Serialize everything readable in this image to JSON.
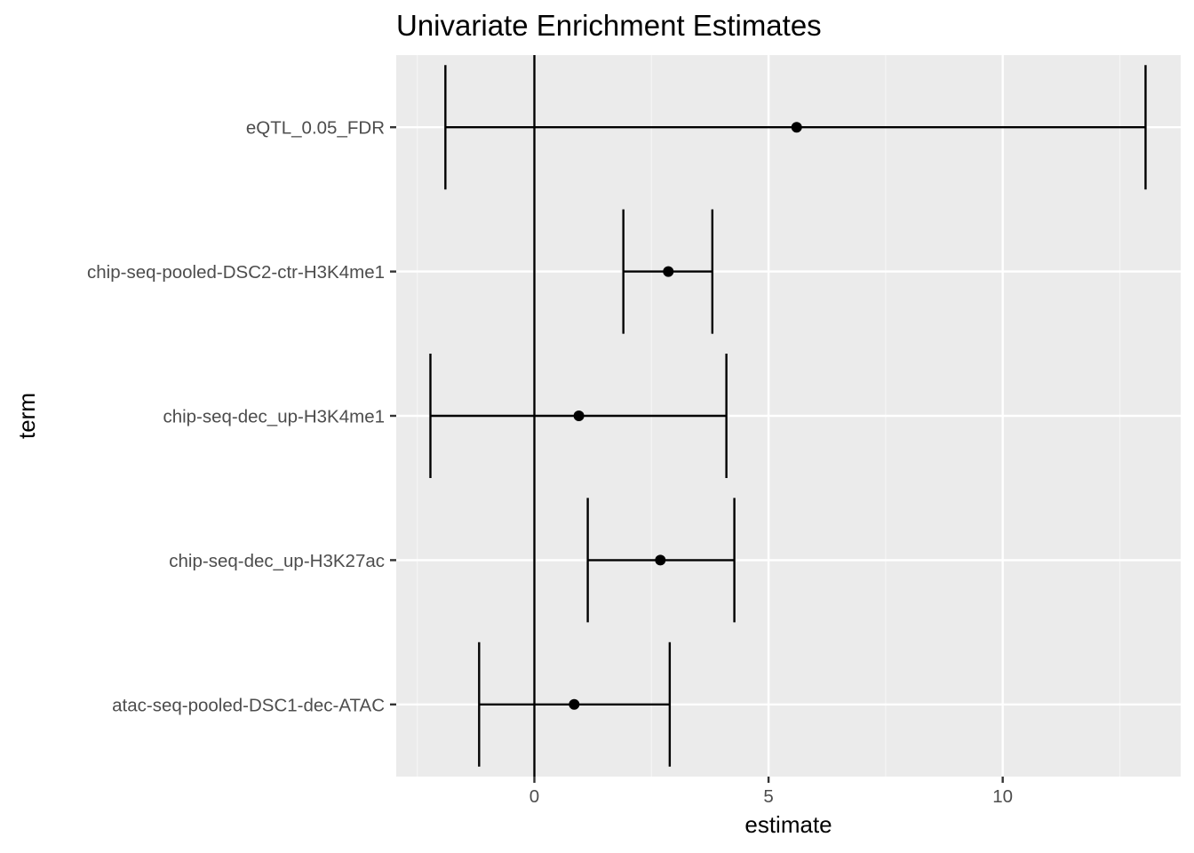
{
  "chart_data": {
    "type": "errorbar",
    "title": "Univariate Enrichment Estimates",
    "xlabel": "estimate",
    "ylabel": "term",
    "xlim": [
      -2.95,
      13.8
    ],
    "xticks": [
      0,
      5,
      10
    ],
    "xtick_labels": [
      "0",
      "5",
      "10"
    ],
    "reference_line_x": 0,
    "grid": true,
    "categories": [
      "atac-seq-pooled-DSC1-dec-ATAC",
      "chip-seq-dec_up-H3K27ac",
      "chip-seq-dec_up-H3K4me1",
      "chip-seq-pooled-DSC2-ctr-H3K4me1",
      "eQTL_0.05_FDR"
    ],
    "series": [
      {
        "estimate": [
          0.85,
          2.69,
          0.95,
          2.86,
          5.6
        ],
        "conf_low": [
          -1.18,
          1.14,
          -2.22,
          1.9,
          -1.9
        ],
        "conf_high": [
          2.89,
          4.27,
          4.1,
          3.8,
          13.05
        ]
      }
    ],
    "colors": {
      "panel_background": "#ebebeb",
      "grid_major": "#ffffff",
      "grid_minor": "#f5f5f5",
      "mark": "#000000",
      "tick_label": "#4d4d4d",
      "tick_mark": "#333333"
    }
  }
}
